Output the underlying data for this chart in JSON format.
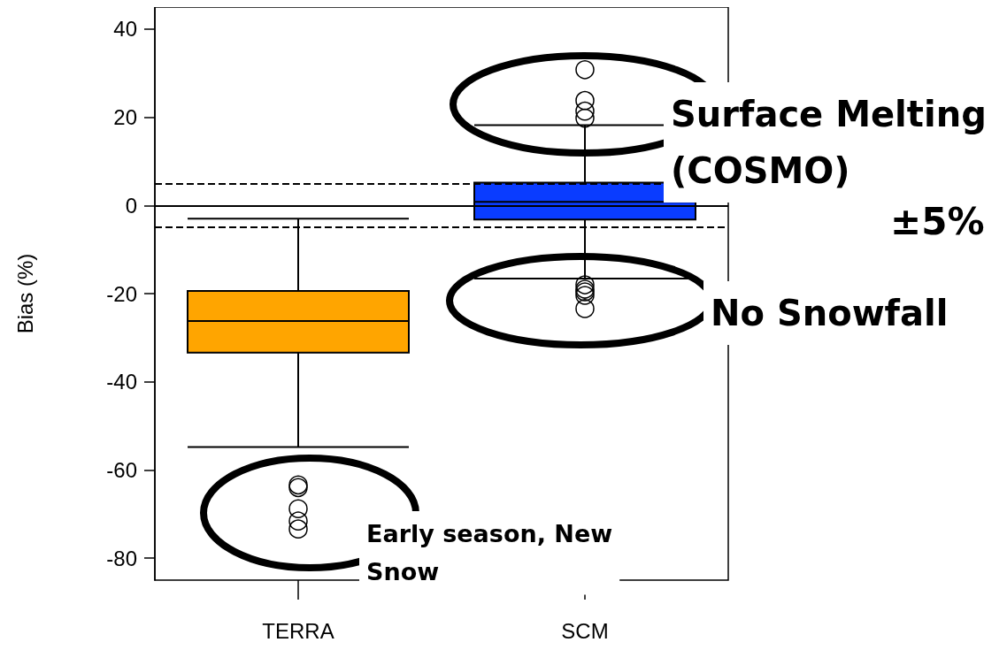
{
  "chart_data": {
    "type": "box",
    "ylabel": "Bias (%)",
    "categories": [
      "TERRA",
      "SCM"
    ],
    "colors": [
      "#ffa500",
      "#0a3cff"
    ],
    "boxes": [
      {
        "low": -54.8,
        "q1": -33.4,
        "median": -26.2,
        "q3": -19.4,
        "high": -3,
        "outliers": [
          -63.4,
          -64,
          -68.8,
          -71.6,
          -73.4
        ]
      },
      {
        "low": -16.6,
        "q1": -3.2,
        "median": 0.8,
        "q3": 5.2,
        "high": 18.2,
        "outliers": [
          30.8,
          23.8,
          21.4,
          19.8,
          -18,
          -19,
          -19.6,
          -20.4,
          -23.4
        ]
      }
    ],
    "ylim": [
      -85,
      45
    ],
    "yticks": [
      -80,
      -60,
      -40,
      -20,
      0,
      20,
      40
    ],
    "ref_lines": [
      {
        "axis": "y",
        "value": 0,
        "line_style": "solid"
      },
      {
        "axis": "y",
        "value": 5,
        "line_style": "dashed"
      },
      {
        "axis": "y",
        "value": -5,
        "line_style": "dashed"
      }
    ],
    "annotations": [
      "Surface Melting\n(COSMO)",
      "±5%",
      "No Snowfall",
      "Early season, New\nSnow"
    ],
    "grid": false
  }
}
